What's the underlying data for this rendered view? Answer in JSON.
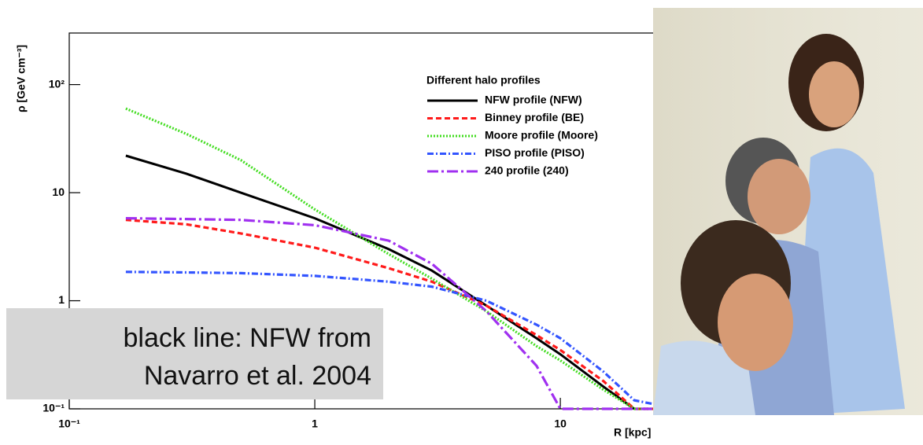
{
  "chart_data": {
    "type": "line",
    "xlabel": "R [kpc]",
    "ylabel": "ρ [GeV cm⁻³]",
    "x": [
      0.17,
      0.3,
      0.5,
      1,
      2,
      3,
      5,
      8,
      10,
      15,
      20,
      30
    ],
    "xscale": "log",
    "yscale": "log",
    "xlim": [
      0.1,
      30
    ],
    "ylim": [
      0.1,
      300
    ],
    "xticks": [
      {
        "value": 0.1,
        "label": "10⁻¹"
      },
      1,
      10
    ],
    "yticks": [
      {
        "value": 0.1,
        "label": "10⁻¹"
      },
      1,
      10,
      {
        "value": 100,
        "label": "10²"
      }
    ],
    "legend_title": "Different halo profiles",
    "legend": "upper right",
    "series": [
      {
        "name": "NFW profile (NFW)",
        "color": "#000000",
        "line_style": "solid",
        "values": [
          22,
          15,
          10,
          5.8,
          3,
          1.9,
          0.9,
          0.45,
          0.32,
          0.16,
          0.1,
          0.1
        ]
      },
      {
        "name": "Binney profile (BE)",
        "color": "#ff1a1a",
        "line_style": "dashed",
        "values": [
          5.6,
          5.1,
          4.2,
          3.1,
          2.0,
          1.5,
          0.9,
          0.48,
          0.35,
          0.18,
          0.1,
          0.1
        ]
      },
      {
        "name": "Moore profile (Moore)",
        "color": "#44dd22",
        "line_style": "dotted",
        "values": [
          60,
          35,
          20,
          7,
          2.7,
          1.6,
          0.8,
          0.38,
          0.28,
          0.15,
          0.1,
          0.1
        ]
      },
      {
        "name": "PISO profile (PISO)",
        "color": "#3355ff",
        "line_style": "dashdot",
        "values": [
          1.85,
          1.83,
          1.8,
          1.7,
          1.5,
          1.35,
          1.0,
          0.6,
          0.45,
          0.22,
          0.12,
          0.1
        ]
      },
      {
        "name": "240 profile (240)",
        "color": "#a030f0",
        "line_style": "longdashdot",
        "values": [
          5.8,
          5.7,
          5.6,
          5.0,
          3.6,
          2.2,
          0.8,
          0.25,
          0.1,
          0.1,
          0.1,
          0.1
        ]
      }
    ],
    "annotation": [
      "black line: NFW from",
      "Navarro et al. 2004"
    ]
  }
}
